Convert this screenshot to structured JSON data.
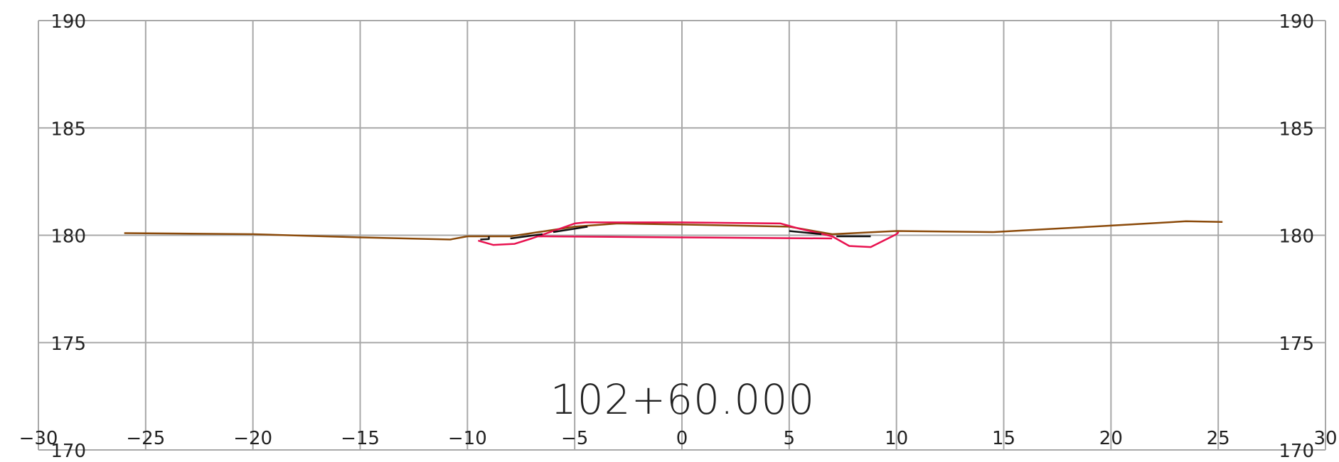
{
  "chart_data": {
    "type": "line",
    "title": "102+60.000",
    "xlabel": "",
    "ylabel": "",
    "xlim": [
      -30,
      30
    ],
    "ylim": [
      170,
      190
    ],
    "x_ticks": [
      "−30",
      "−25",
      "−20",
      "−15",
      "−10",
      "−5",
      "0",
      "5",
      "10",
      "15",
      "20",
      "25",
      "30"
    ],
    "x_tick_values": [
      -30,
      -25,
      -20,
      -15,
      -10,
      -5,
      0,
      5,
      10,
      15,
      20,
      25,
      30
    ],
    "y_ticks": [
      "170",
      "175",
      "180",
      "185",
      "190"
    ],
    "y_tick_values": [
      170,
      175,
      180,
      185,
      190
    ],
    "grid": true,
    "colors": {
      "grid": "#a8a8a8",
      "ground": "#8b4a0a",
      "design": "#e8114f",
      "existing": "#111111"
    },
    "series": [
      {
        "color": "#8b4a0a",
        "x": [
          -26.0,
          -20.0,
          -15.0,
          -10.8,
          -10.0,
          -8.0,
          -5.0,
          -3.0,
          0.0,
          5.0,
          7.0,
          10.0,
          14.5,
          20.0,
          23.5,
          25.2
        ],
        "y": [
          180.1,
          180.05,
          179.9,
          179.8,
          179.95,
          179.95,
          180.4,
          180.55,
          180.5,
          180.4,
          180.05,
          180.2,
          180.15,
          180.45,
          180.65,
          180.62
        ]
      },
      {
        "color": "#e8114f",
        "x": [
          -9.5,
          -8.8,
          -7.8,
          -7.0,
          -6.0,
          -5.0,
          -4.5,
          0.0,
          4.6,
          5.5,
          7.0,
          7.8,
          8.8,
          10.0,
          10.1
        ],
        "y": [
          179.75,
          179.55,
          179.6,
          179.85,
          180.2,
          180.55,
          180.6,
          180.6,
          180.55,
          180.3,
          179.95,
          179.5,
          179.45,
          180.05,
          180.15
        ]
      },
      {
        "color": "#e8114f",
        "x": [
          -6.8,
          0.0,
          7.0
        ],
        "y": [
          179.95,
          179.9,
          179.85
        ]
      },
      {
        "color": "#111111",
        "x": [
          -9.4,
          -9.0,
          -9.0
        ],
        "y": [
          179.8,
          179.82,
          179.95
        ]
      },
      {
        "color": "#111111",
        "x": [
          -8.0,
          -6.5
        ],
        "y": [
          179.85,
          180.05
        ]
      },
      {
        "color": "#111111",
        "x": [
          -6.0,
          -4.4
        ],
        "y": [
          180.15,
          180.4
        ]
      },
      {
        "color": "#111111",
        "x": [
          5.0,
          6.5
        ],
        "y": [
          180.2,
          180.05
        ]
      },
      {
        "color": "#111111",
        "x": [
          7.2,
          8.8
        ],
        "y": [
          179.95,
          179.95
        ]
      }
    ]
  }
}
